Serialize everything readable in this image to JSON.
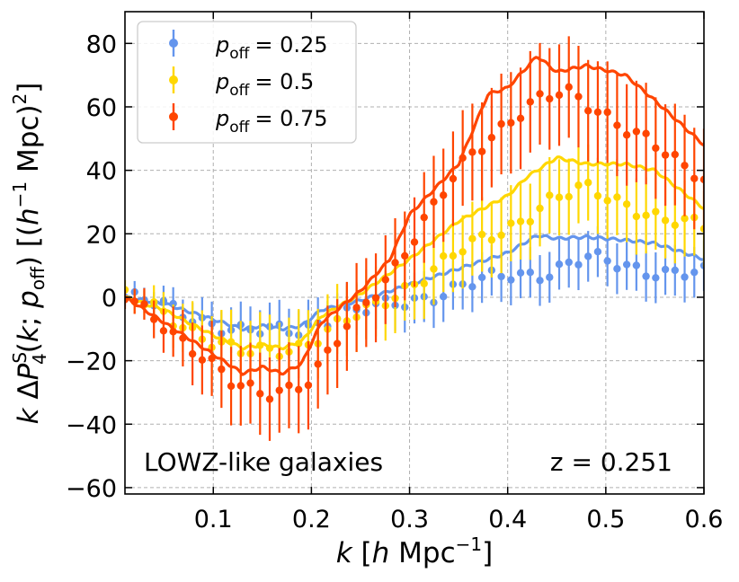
{
  "chart_data": {
    "type": "line",
    "xlabel": "k [h Mpc^-1]",
    "ylabel": "k ΔP_4^S(k; p_off) [(h^-1 Mpc)^2]",
    "xlim": [
      0.01,
      0.6
    ],
    "ylim": [
      -62,
      90
    ],
    "x_ticks": [
      0.1,
      0.2,
      0.3,
      0.4,
      0.5,
      0.6
    ],
    "x_tick_labels": [
      "0.1",
      "0.2",
      "0.3",
      "0.4",
      "0.5",
      "0.6"
    ],
    "y_ticks": [
      -60,
      -40,
      -20,
      0,
      20,
      40,
      60,
      80
    ],
    "y_tick_labels": [
      "−60",
      "−40",
      "−20",
      "0",
      "20",
      "40",
      "60",
      "80"
    ],
    "grid": true,
    "legend_position": "top-left",
    "annotations": {
      "sample": "LOWZ-like galaxies",
      "redshift": "z = 0.251"
    },
    "series": [
      {
        "name": "p_off = 0.25",
        "legend_label": "= 0.25",
        "color": "#6495ED",
        "curve_knots": [
          [
            0.01,
            0
          ],
          [
            0.05,
            -2
          ],
          [
            0.1,
            -7
          ],
          [
            0.13,
            -10
          ],
          [
            0.15,
            -9
          ],
          [
            0.17,
            -10
          ],
          [
            0.19,
            -9
          ],
          [
            0.21,
            -4
          ],
          [
            0.25,
            -1
          ],
          [
            0.3,
            4
          ],
          [
            0.35,
            9
          ],
          [
            0.4,
            14
          ],
          [
            0.43,
            19.5
          ],
          [
            0.45,
            18.5
          ],
          [
            0.48,
            19
          ],
          [
            0.52,
            18
          ],
          [
            0.55,
            17
          ],
          [
            0.6,
            12
          ]
        ],
        "point_knots": [
          [
            0.01,
            0
          ],
          [
            0.05,
            -3
          ],
          [
            0.1,
            -8
          ],
          [
            0.13,
            -11
          ],
          [
            0.16,
            -11
          ],
          [
            0.19,
            -10
          ],
          [
            0.22,
            -6
          ],
          [
            0.26,
            -4
          ],
          [
            0.3,
            -1
          ],
          [
            0.35,
            3
          ],
          [
            0.4,
            7
          ],
          [
            0.44,
            8
          ],
          [
            0.48,
            12
          ],
          [
            0.52,
            10
          ],
          [
            0.56,
            8
          ],
          [
            0.6,
            7
          ]
        ],
        "errorbar_knots": [
          [
            0.01,
            3
          ],
          [
            0.1,
            7
          ],
          [
            0.2,
            8
          ],
          [
            0.3,
            8
          ],
          [
            0.4,
            8
          ],
          [
            0.5,
            8
          ],
          [
            0.6,
            8
          ]
        ]
      },
      {
        "name": "p_off = 0.5",
        "legend_label": "= 0.5",
        "color": "#FFD700",
        "curve_knots": [
          [
            0.01,
            0
          ],
          [
            0.05,
            -4
          ],
          [
            0.1,
            -12
          ],
          [
            0.13,
            -16
          ],
          [
            0.15,
            -15
          ],
          [
            0.17,
            -16
          ],
          [
            0.19,
            -14
          ],
          [
            0.21,
            -6
          ],
          [
            0.25,
            1
          ],
          [
            0.3,
            12
          ],
          [
            0.35,
            24
          ],
          [
            0.4,
            32
          ],
          [
            0.42,
            38
          ],
          [
            0.45,
            44
          ],
          [
            0.48,
            42
          ],
          [
            0.52,
            42
          ],
          [
            0.55,
            40
          ],
          [
            0.6,
            28
          ]
        ],
        "point_knots": [
          [
            0.01,
            0
          ],
          [
            0.05,
            -5
          ],
          [
            0.1,
            -14
          ],
          [
            0.13,
            -18
          ],
          [
            0.16,
            -17
          ],
          [
            0.19,
            -15
          ],
          [
            0.22,
            -10
          ],
          [
            0.26,
            -4
          ],
          [
            0.3,
            4
          ],
          [
            0.35,
            14
          ],
          [
            0.4,
            22
          ],
          [
            0.44,
            30
          ],
          [
            0.48,
            34
          ],
          [
            0.52,
            30
          ],
          [
            0.56,
            24
          ],
          [
            0.6,
            22
          ]
        ],
        "errorbar_knots": [
          [
            0.01,
            3
          ],
          [
            0.1,
            10
          ],
          [
            0.2,
            11
          ],
          [
            0.3,
            11
          ],
          [
            0.4,
            12
          ],
          [
            0.5,
            12
          ],
          [
            0.6,
            12
          ]
        ]
      },
      {
        "name": "p_off = 0.75",
        "legend_label": "= 0.75",
        "color": "#FF4500",
        "curve_knots": [
          [
            0.01,
            0
          ],
          [
            0.05,
            -8
          ],
          [
            0.1,
            -18
          ],
          [
            0.13,
            -24
          ],
          [
            0.15,
            -22
          ],
          [
            0.17,
            -24
          ],
          [
            0.19,
            -21
          ],
          [
            0.21,
            -8
          ],
          [
            0.25,
            2
          ],
          [
            0.28,
            12
          ],
          [
            0.3,
            26
          ],
          [
            0.35,
            42
          ],
          [
            0.38,
            64
          ],
          [
            0.4,
            66
          ],
          [
            0.43,
            76
          ],
          [
            0.45,
            71
          ],
          [
            0.48,
            73
          ],
          [
            0.52,
            70
          ],
          [
            0.55,
            62
          ],
          [
            0.6,
            48
          ]
        ],
        "point_knots": [
          [
            0.01,
            0
          ],
          [
            0.05,
            -8
          ],
          [
            0.1,
            -22
          ],
          [
            0.12,
            -28
          ],
          [
            0.15,
            -30
          ],
          [
            0.18,
            -28
          ],
          [
            0.2,
            -26
          ],
          [
            0.24,
            -8
          ],
          [
            0.28,
            8
          ],
          [
            0.32,
            26
          ],
          [
            0.36,
            44
          ],
          [
            0.4,
            56
          ],
          [
            0.43,
            62
          ],
          [
            0.46,
            64
          ],
          [
            0.5,
            58
          ],
          [
            0.54,
            50
          ],
          [
            0.58,
            40
          ],
          [
            0.6,
            38
          ]
        ],
        "errorbar_knots": [
          [
            0.01,
            3
          ],
          [
            0.1,
            12
          ],
          [
            0.2,
            14
          ],
          [
            0.3,
            14
          ],
          [
            0.4,
            16
          ],
          [
            0.5,
            16
          ],
          [
            0.6,
            16
          ]
        ]
      }
    ],
    "n_points": 61
  }
}
